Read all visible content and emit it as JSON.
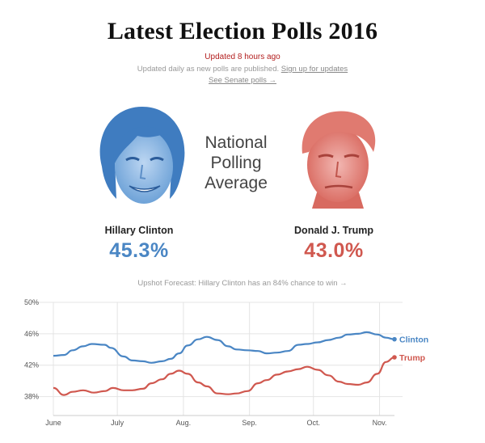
{
  "header": {
    "title": "Latest Election Polls 2016",
    "updated": "Updated 8 hours ago",
    "sub_text": "Updated daily as new polls are published.",
    "signup_link": "Sign up for updates",
    "senate_link": "See Senate polls →"
  },
  "center_label": [
    "National",
    "Polling",
    "Average"
  ],
  "candidates": [
    {
      "name": "Hillary Clinton",
      "pct": "45.3%",
      "color": "#4a86c4",
      "portrait": "clinton-portrait"
    },
    {
      "name": "Donald J. Trump",
      "pct": "43.0%",
      "color": "#d0584f",
      "portrait": "trump-portrait"
    }
  ],
  "forecast_link": "Upshot Forecast: Hillary Clinton has an 84% chance to win →",
  "chart_data": {
    "type": "line",
    "x_ticks": [
      "June",
      "July",
      "Aug.",
      "Sep.",
      "Oct.",
      "Nov."
    ],
    "y_ticks": [
      "50%",
      "46%",
      "42%",
      "38%"
    ],
    "ylim": [
      36,
      50
    ],
    "xlim": [
      "2016-06-01",
      "2016-11-08"
    ],
    "grid": true,
    "legend": "end-of-line labels",
    "series": [
      {
        "name": "Clinton",
        "color": "#4a86c4",
        "points": [
          [
            "2016-06-01",
            43.2
          ],
          [
            "2016-06-06",
            43.3
          ],
          [
            "2016-06-10",
            43.9
          ],
          [
            "2016-06-15",
            44.4
          ],
          [
            "2016-06-19",
            44.7
          ],
          [
            "2016-06-25",
            44.6
          ],
          [
            "2016-06-28",
            44.2
          ],
          [
            "2016-07-04",
            43.1
          ],
          [
            "2016-07-08",
            42.6
          ],
          [
            "2016-07-13",
            42.5
          ],
          [
            "2016-07-17",
            42.3
          ],
          [
            "2016-07-22",
            42.5
          ],
          [
            "2016-07-26",
            42.8
          ],
          [
            "2016-07-30",
            43.5
          ],
          [
            "2016-08-03",
            44.5
          ],
          [
            "2016-08-08",
            45.3
          ],
          [
            "2016-08-12",
            45.6
          ],
          [
            "2016-08-17",
            45.2
          ],
          [
            "2016-08-22",
            44.4
          ],
          [
            "2016-08-26",
            44.0
          ],
          [
            "2016-08-31",
            43.9
          ],
          [
            "2016-09-05",
            43.8
          ],
          [
            "2016-09-09",
            43.5
          ],
          [
            "2016-09-14",
            43.6
          ],
          [
            "2016-09-19",
            43.8
          ],
          [
            "2016-09-24",
            44.6
          ],
          [
            "2016-09-28",
            44.7
          ],
          [
            "2016-10-03",
            44.9
          ],
          [
            "2016-10-08",
            45.2
          ],
          [
            "2016-10-13",
            45.5
          ],
          [
            "2016-10-17",
            45.9
          ],
          [
            "2016-10-22",
            46.0
          ],
          [
            "2016-10-26",
            46.2
          ],
          [
            "2016-10-31",
            45.9
          ],
          [
            "2016-11-04",
            45.5
          ],
          [
            "2016-11-08",
            45.3
          ]
        ]
      },
      {
        "name": "Trump",
        "color": "#d0584f",
        "points": [
          [
            "2016-06-01",
            39.1
          ],
          [
            "2016-06-06",
            38.2
          ],
          [
            "2016-06-10",
            38.6
          ],
          [
            "2016-06-15",
            38.8
          ],
          [
            "2016-06-20",
            38.5
          ],
          [
            "2016-06-25",
            38.7
          ],
          [
            "2016-06-29",
            39.1
          ],
          [
            "2016-07-04",
            38.8
          ],
          [
            "2016-07-08",
            38.8
          ],
          [
            "2016-07-13",
            39.0
          ],
          [
            "2016-07-17",
            39.7
          ],
          [
            "2016-07-22",
            40.2
          ],
          [
            "2016-07-26",
            40.9
          ],
          [
            "2016-07-30",
            41.3
          ],
          [
            "2016-08-03",
            40.9
          ],
          [
            "2016-08-08",
            39.8
          ],
          [
            "2016-08-12",
            39.3
          ],
          [
            "2016-08-17",
            38.4
          ],
          [
            "2016-08-22",
            38.3
          ],
          [
            "2016-08-26",
            38.4
          ],
          [
            "2016-08-31",
            38.7
          ],
          [
            "2016-09-05",
            39.7
          ],
          [
            "2016-09-09",
            40.1
          ],
          [
            "2016-09-14",
            40.8
          ],
          [
            "2016-09-19",
            41.2
          ],
          [
            "2016-09-24",
            41.5
          ],
          [
            "2016-09-28",
            41.8
          ],
          [
            "2016-10-03",
            41.4
          ],
          [
            "2016-10-08",
            40.7
          ],
          [
            "2016-10-13",
            39.9
          ],
          [
            "2016-10-17",
            39.6
          ],
          [
            "2016-10-22",
            39.5
          ],
          [
            "2016-10-26",
            39.8
          ],
          [
            "2016-10-31",
            40.9
          ],
          [
            "2016-11-04",
            42.4
          ],
          [
            "2016-11-08",
            43.0
          ]
        ]
      }
    ]
  }
}
